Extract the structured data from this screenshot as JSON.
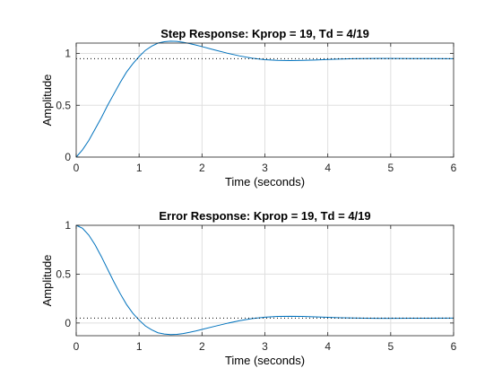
{
  "figure": {
    "background": "#ffffff"
  },
  "chart_data": [
    {
      "type": "line",
      "title": "Step Response: Kprop = 19, Td = 4/19",
      "xlabel": "Time (seconds)",
      "ylabel": "Amplitude",
      "xlim": [
        0,
        6
      ],
      "ylim": [
        0,
        1.1
      ],
      "xticks": [
        0,
        1,
        2,
        3,
        4,
        5,
        6
      ],
      "xtick_labels": [
        "0",
        "1",
        "2",
        "3",
        "4",
        "5",
        "6"
      ],
      "yticks": [
        0,
        0.5,
        1
      ],
      "ytick_labels": [
        "0",
        "0.5",
        "1"
      ],
      "grid": true,
      "series": [
        {
          "color": "#0072bd",
          "style": "solid",
          "x": [
            0,
            0.1,
            0.2,
            0.3,
            0.4,
            0.5,
            0.6,
            0.7,
            0.8,
            0.9,
            1.0,
            1.1,
            1.2,
            1.3,
            1.4,
            1.5,
            1.6,
            1.7,
            1.8,
            1.9,
            2.0,
            2.2,
            2.4,
            2.6,
            2.8,
            3.0,
            3.2,
            3.4,
            3.6,
            3.8,
            4.0,
            4.2,
            4.4,
            4.6,
            4.8,
            5.0,
            5.3,
            5.6,
            6.0
          ],
          "y": [
            0,
            0.07,
            0.16,
            0.27,
            0.38,
            0.5,
            0.61,
            0.72,
            0.82,
            0.9,
            0.97,
            1.03,
            1.07,
            1.1,
            1.113,
            1.118,
            1.116,
            1.108,
            1.096,
            1.082,
            1.066,
            1.034,
            1.003,
            0.976,
            0.954,
            0.94,
            0.933,
            0.931,
            0.933,
            0.937,
            0.942,
            0.946,
            0.949,
            0.951,
            0.952,
            0.952,
            0.951,
            0.951,
            0.95
          ]
        },
        {
          "color": "#000000",
          "style": "dotted",
          "x": [
            0,
            6
          ],
          "y": [
            0.95,
            0.95
          ]
        }
      ]
    },
    {
      "type": "line",
      "title": "Error Response: Kprop = 19, Td = 4/19",
      "xlabel": "Time (seconds)",
      "ylabel": "Amplitude",
      "xlim": [
        0,
        6
      ],
      "ylim": [
        -0.13,
        1
      ],
      "xticks": [
        0,
        1,
        2,
        3,
        4,
        5,
        6
      ],
      "xtick_labels": [
        "0",
        "1",
        "2",
        "3",
        "4",
        "5",
        "6"
      ],
      "yticks": [
        0,
        0.5,
        1
      ],
      "ytick_labels": [
        "0",
        "0.5",
        "1"
      ],
      "grid": true,
      "series": [
        {
          "color": "#0072bd",
          "style": "solid",
          "x": [
            0,
            0.1,
            0.2,
            0.3,
            0.4,
            0.5,
            0.6,
            0.7,
            0.8,
            0.9,
            1.0,
            1.1,
            1.2,
            1.3,
            1.4,
            1.5,
            1.6,
            1.7,
            1.8,
            1.9,
            2.0,
            2.2,
            2.4,
            2.6,
            2.8,
            3.0,
            3.2,
            3.4,
            3.6,
            3.8,
            4.0,
            4.2,
            4.4,
            4.6,
            4.8,
            5.0,
            5.3,
            5.6,
            6.0
          ],
          "y": [
            1.0,
            0.97,
            0.9,
            0.8,
            0.68,
            0.55,
            0.42,
            0.3,
            0.19,
            0.1,
            0.03,
            -0.03,
            -0.07,
            -0.1,
            -0.113,
            -0.118,
            -0.116,
            -0.108,
            -0.096,
            -0.082,
            -0.066,
            -0.034,
            -0.003,
            0.024,
            0.046,
            0.06,
            0.067,
            0.069,
            0.067,
            0.063,
            0.058,
            0.054,
            0.051,
            0.049,
            0.048,
            0.048,
            0.049,
            0.049,
            0.05
          ]
        },
        {
          "color": "#000000",
          "style": "dotted",
          "x": [
            0,
            6
          ],
          "y": [
            0.05,
            0.05
          ]
        }
      ]
    }
  ]
}
